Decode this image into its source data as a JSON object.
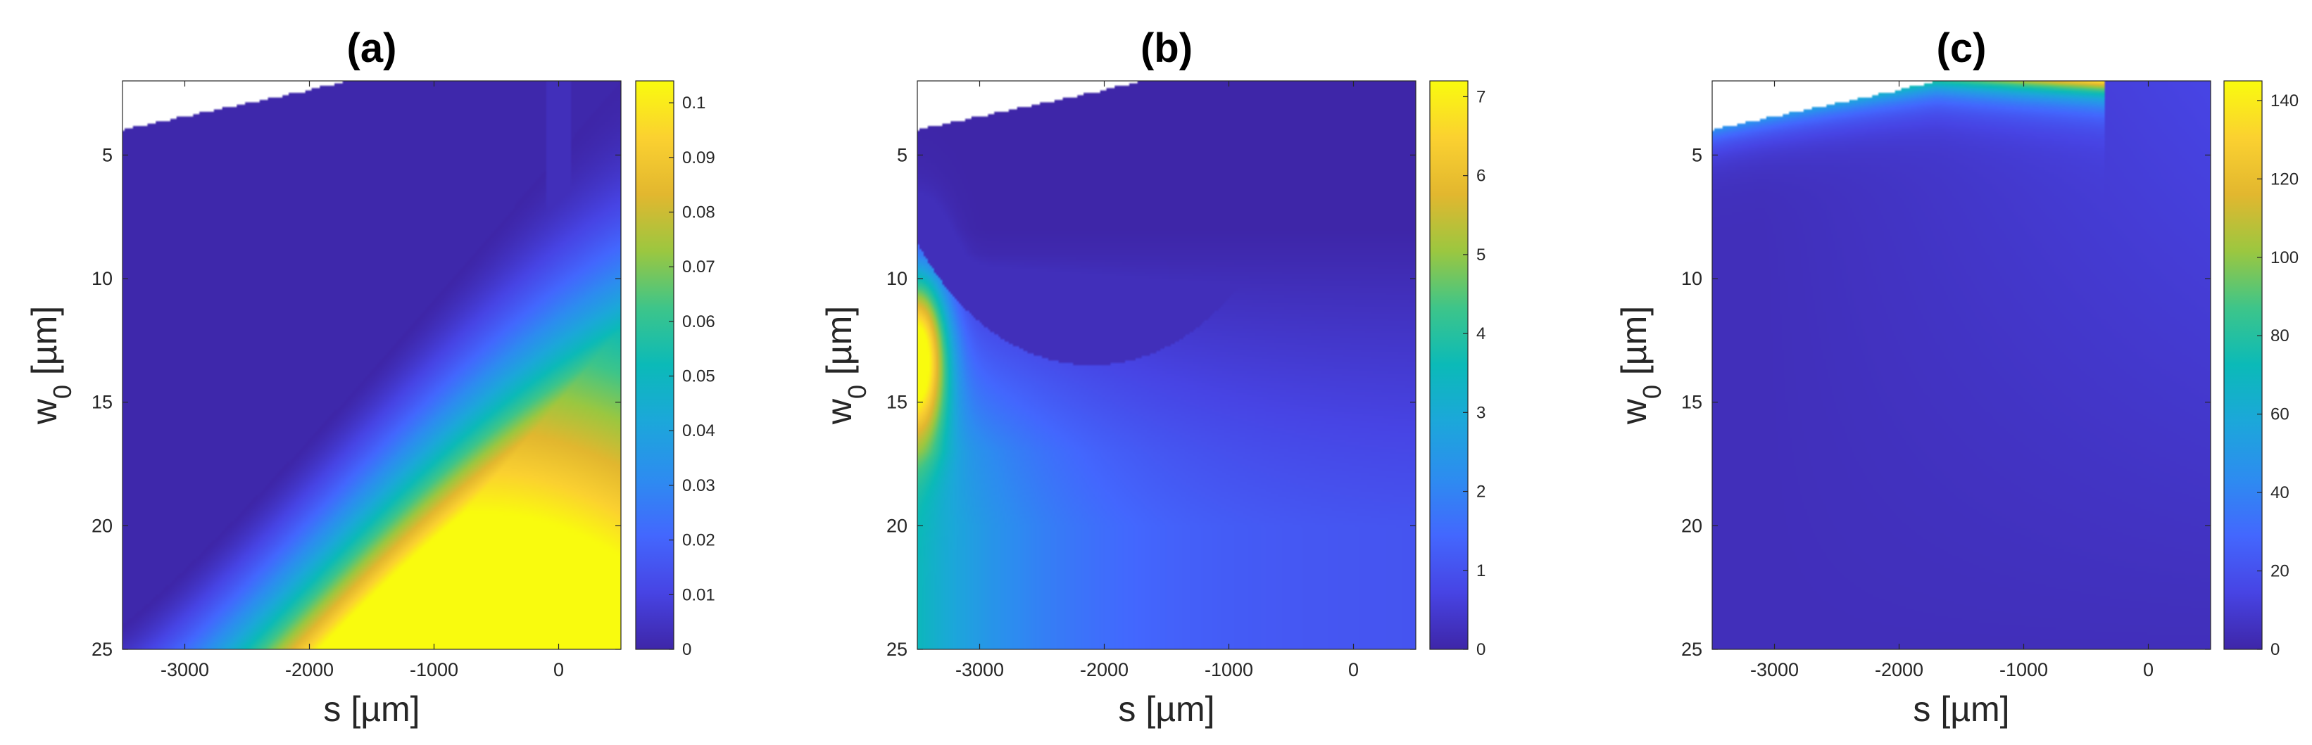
{
  "chart_data": [
    {
      "type": "heatmap",
      "title": "(a)",
      "xlabel": "s [µm]",
      "ylabel": "w0 [µm]",
      "ylabel_main": "w",
      "ylabel_sub": "0",
      "ylabel_unit": " [µm]",
      "xlim": [
        -3500,
        500
      ],
      "ylim": [
        2,
        25
      ],
      "y_reversed": true,
      "xticks": [
        -3000,
        -2000,
        -1000,
        0
      ],
      "yticks": [
        5,
        10,
        15,
        20,
        25
      ],
      "colorbar_ticks": [
        "0",
        "0.01",
        "0.02",
        "0.03",
        "0.04",
        "0.05",
        "0.06",
        "0.07",
        "0.08",
        "0.09",
        "0.1"
      ],
      "colorbar_range": [
        0,
        0.104
      ],
      "colormap": "parula",
      "nan_region_top_left": true,
      "features": "Low values in upper-left; high values (≈0.10) near bottom around s≈-600; boundary curve from (-3500,24) to (0,5)"
    },
    {
      "type": "heatmap",
      "title": "(b)",
      "xlabel": "s [µm]",
      "ylabel": "w0 [µm]",
      "ylabel_main": "w",
      "ylabel_sub": "0",
      "ylabel_unit": " [µm]",
      "xlim": [
        -3500,
        500
      ],
      "ylim": [
        2,
        25
      ],
      "y_reversed": true,
      "xticks": [
        -3000,
        -2000,
        -1000,
        0
      ],
      "yticks": [
        5,
        10,
        15,
        20,
        25
      ],
      "colorbar_ticks": [
        "0",
        "1",
        "2",
        "3",
        "4",
        "5",
        "6",
        "7"
      ],
      "colorbar_range": [
        0,
        7.2
      ],
      "colormap": "parula",
      "nan_region_top_left": true,
      "features": "Peak (≈6.5) at left edge s≈-3500, w0≈12–14; low arc region at top centred near s≈-2100 down to w0≈13.5"
    },
    {
      "type": "heatmap",
      "title": "(c)",
      "xlabel": "s [µm]",
      "ylabel": "w0 [µm]",
      "ylabel_main": "w",
      "ylabel_sub": "0",
      "ylabel_unit": " [µm]",
      "xlim": [
        -3500,
        500
      ],
      "ylim": [
        2,
        25
      ],
      "y_reversed": true,
      "xticks": [
        -3000,
        -2000,
        -1000,
        0
      ],
      "yticks": [
        5,
        10,
        15,
        20,
        25
      ],
      "colorbar_ticks": [
        "0",
        "20",
        "40",
        "60",
        "80",
        "100",
        "120",
        "140"
      ],
      "colorbar_range": [
        0,
        145
      ],
      "colormap": "parula",
      "nan_region_top_left": true,
      "features": "High values (up to ≈140) along the upper NaN boundary near s≈-400, w0≈2; near zero elsewhere"
    }
  ]
}
